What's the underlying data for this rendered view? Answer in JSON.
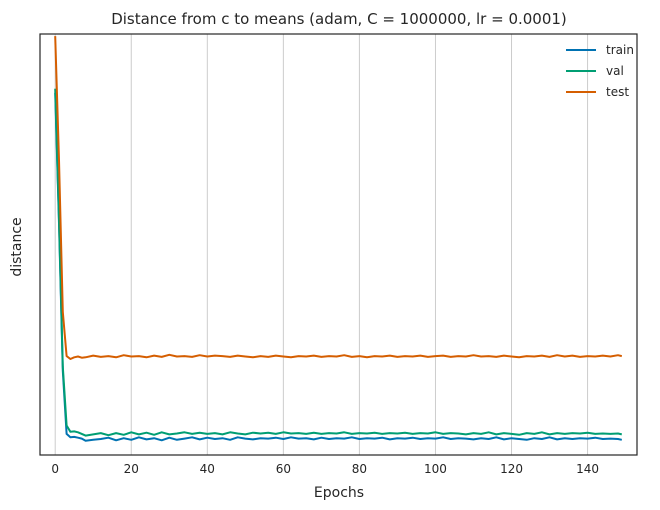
{
  "chart_data": {
    "type": "line",
    "title": "Distance from c to means (adam, C = 1000000, lr = 0.0001)",
    "xlabel": "Epochs",
    "ylabel": "distance",
    "xlim": [
      -4,
      153
    ],
    "ylim": [
      0,
      100
    ],
    "xticks": [
      0,
      20,
      40,
      60,
      80,
      100,
      120,
      140
    ],
    "grid": "vertical",
    "legend_position": "top-right",
    "series": [
      {
        "name": "train",
        "color": "#0072b2",
        "points": [
          [
            0,
            86
          ],
          [
            1,
            55
          ],
          [
            2,
            20
          ],
          [
            3,
            5
          ],
          [
            4,
            4.2
          ],
          [
            5,
            4.3
          ],
          [
            6,
            4.1
          ],
          [
            7,
            3.9
          ],
          [
            8,
            3.4
          ],
          [
            10,
            3.6
          ],
          [
            12,
            3.8
          ],
          [
            14,
            4.1
          ],
          [
            16,
            3.5
          ],
          [
            18,
            4
          ],
          [
            20,
            3.6
          ],
          [
            22,
            4.2
          ],
          [
            24,
            3.7
          ],
          [
            26,
            4
          ],
          [
            28,
            3.5
          ],
          [
            30,
            4.1
          ],
          [
            32,
            3.6
          ],
          [
            34,
            3.9
          ],
          [
            36,
            4.2
          ],
          [
            38,
            3.7
          ],
          [
            40,
            4.1
          ],
          [
            42,
            3.8
          ],
          [
            44,
            4
          ],
          [
            46,
            3.6
          ],
          [
            48,
            4.2
          ],
          [
            50,
            3.9
          ],
          [
            52,
            3.7
          ],
          [
            54,
            4
          ],
          [
            56,
            3.9
          ],
          [
            58,
            4.1
          ],
          [
            60,
            3.8
          ],
          [
            62,
            4.2
          ],
          [
            64,
            3.9
          ],
          [
            66,
            4
          ],
          [
            68,
            3.7
          ],
          [
            70,
            4.1
          ],
          [
            72,
            3.8
          ],
          [
            74,
            4
          ],
          [
            76,
            3.9
          ],
          [
            78,
            4.2
          ],
          [
            80,
            3.8
          ],
          [
            82,
            4
          ],
          [
            84,
            3.9
          ],
          [
            86,
            4.1
          ],
          [
            88,
            3.7
          ],
          [
            90,
            4
          ],
          [
            92,
            3.9
          ],
          [
            94,
            4.1
          ],
          [
            96,
            3.8
          ],
          [
            98,
            4
          ],
          [
            100,
            3.9
          ],
          [
            102,
            4.2
          ],
          [
            104,
            3.8
          ],
          [
            106,
            4
          ],
          [
            108,
            3.9
          ],
          [
            110,
            3.7
          ],
          [
            112,
            4
          ],
          [
            114,
            3.8
          ],
          [
            116,
            4.2
          ],
          [
            118,
            3.7
          ],
          [
            120,
            4
          ],
          [
            122,
            3.8
          ],
          [
            124,
            3.6
          ],
          [
            126,
            4
          ],
          [
            128,
            3.8
          ],
          [
            130,
            4.2
          ],
          [
            132,
            3.7
          ],
          [
            134,
            4
          ],
          [
            136,
            3.8
          ],
          [
            138,
            4
          ],
          [
            140,
            3.9
          ],
          [
            142,
            4.1
          ],
          [
            144,
            3.8
          ],
          [
            146,
            3.9
          ],
          [
            148,
            3.8
          ],
          [
            149,
            3.6
          ]
        ]
      },
      {
        "name": "val",
        "color": "#009e73",
        "points": [
          [
            0,
            87
          ],
          [
            1,
            56
          ],
          [
            2,
            21
          ],
          [
            3,
            7
          ],
          [
            4,
            5.5
          ],
          [
            5,
            5.6
          ],
          [
            6,
            5.4
          ],
          [
            7,
            5
          ],
          [
            8,
            4.6
          ],
          [
            10,
            4.9
          ],
          [
            12,
            5.2
          ],
          [
            14,
            4.7
          ],
          [
            16,
            5.2
          ],
          [
            18,
            4.8
          ],
          [
            20,
            5.4
          ],
          [
            22,
            4.9
          ],
          [
            24,
            5.3
          ],
          [
            26,
            4.8
          ],
          [
            28,
            5.4
          ],
          [
            30,
            4.9
          ],
          [
            32,
            5.1
          ],
          [
            34,
            5.4
          ],
          [
            36,
            5
          ],
          [
            38,
            5.3
          ],
          [
            40,
            5
          ],
          [
            42,
            5.2
          ],
          [
            44,
            4.9
          ],
          [
            46,
            5.4
          ],
          [
            48,
            5.1
          ],
          [
            50,
            4.9
          ],
          [
            52,
            5.3
          ],
          [
            54,
            5.1
          ],
          [
            56,
            5.3
          ],
          [
            58,
            5
          ],
          [
            60,
            5.4
          ],
          [
            62,
            5.1
          ],
          [
            64,
            5.2
          ],
          [
            66,
            5
          ],
          [
            68,
            5.3
          ],
          [
            70,
            5
          ],
          [
            72,
            5.2
          ],
          [
            74,
            5.1
          ],
          [
            76,
            5.4
          ],
          [
            78,
            5
          ],
          [
            80,
            5.2
          ],
          [
            82,
            5.1
          ],
          [
            84,
            5.3
          ],
          [
            86,
            5
          ],
          [
            88,
            5.2
          ],
          [
            90,
            5.1
          ],
          [
            92,
            5.3
          ],
          [
            94,
            5
          ],
          [
            96,
            5.2
          ],
          [
            98,
            5.1
          ],
          [
            100,
            5.4
          ],
          [
            102,
            5
          ],
          [
            104,
            5.2
          ],
          [
            106,
            5.1
          ],
          [
            108,
            4.9
          ],
          [
            110,
            5.2
          ],
          [
            112,
            5
          ],
          [
            114,
            5.4
          ],
          [
            116,
            4.9
          ],
          [
            118,
            5.2
          ],
          [
            120,
            5
          ],
          [
            122,
            4.8
          ],
          [
            124,
            5.2
          ],
          [
            126,
            5
          ],
          [
            128,
            5.4
          ],
          [
            130,
            4.9
          ],
          [
            132,
            5.2
          ],
          [
            134,
            5
          ],
          [
            136,
            5.2
          ],
          [
            138,
            5.1
          ],
          [
            140,
            5.3
          ],
          [
            142,
            5
          ],
          [
            144,
            5.1
          ],
          [
            146,
            5
          ],
          [
            148,
            5.1
          ],
          [
            149,
            4.9
          ]
        ]
      },
      {
        "name": "test",
        "color": "#d55e00",
        "points": [
          [
            0,
            99.5
          ],
          [
            1,
            70
          ],
          [
            2,
            34
          ],
          [
            3,
            23.5
          ],
          [
            4,
            22.8
          ],
          [
            5,
            23.2
          ],
          [
            6,
            23.4
          ],
          [
            7,
            23.1
          ],
          [
            8,
            23.2
          ],
          [
            10,
            23.6
          ],
          [
            12,
            23.3
          ],
          [
            14,
            23.5
          ],
          [
            16,
            23.2
          ],
          [
            18,
            23.7
          ],
          [
            20,
            23.4
          ],
          [
            22,
            23.5
          ],
          [
            24,
            23.2
          ],
          [
            26,
            23.6
          ],
          [
            28,
            23.3
          ],
          [
            30,
            23.8
          ],
          [
            32,
            23.4
          ],
          [
            34,
            23.5
          ],
          [
            36,
            23.3
          ],
          [
            38,
            23.7
          ],
          [
            40,
            23.4
          ],
          [
            42,
            23.6
          ],
          [
            44,
            23.5
          ],
          [
            46,
            23.3
          ],
          [
            48,
            23.6
          ],
          [
            50,
            23.4
          ],
          [
            52,
            23.2
          ],
          [
            54,
            23.5
          ],
          [
            56,
            23.3
          ],
          [
            58,
            23.6
          ],
          [
            60,
            23.4
          ],
          [
            62,
            23.2
          ],
          [
            64,
            23.5
          ],
          [
            66,
            23.4
          ],
          [
            68,
            23.6
          ],
          [
            70,
            23.3
          ],
          [
            72,
            23.5
          ],
          [
            74,
            23.4
          ],
          [
            76,
            23.7
          ],
          [
            78,
            23.3
          ],
          [
            80,
            23.5
          ],
          [
            82,
            23.2
          ],
          [
            84,
            23.5
          ],
          [
            86,
            23.4
          ],
          [
            88,
            23.6
          ],
          [
            90,
            23.3
          ],
          [
            92,
            23.5
          ],
          [
            94,
            23.4
          ],
          [
            96,
            23.6
          ],
          [
            98,
            23.3
          ],
          [
            100,
            23.5
          ],
          [
            102,
            23.6
          ],
          [
            104,
            23.3
          ],
          [
            106,
            23.5
          ],
          [
            108,
            23.4
          ],
          [
            110,
            23.7
          ],
          [
            112,
            23.4
          ],
          [
            114,
            23.5
          ],
          [
            116,
            23.3
          ],
          [
            118,
            23.6
          ],
          [
            120,
            23.4
          ],
          [
            122,
            23.2
          ],
          [
            124,
            23.5
          ],
          [
            126,
            23.4
          ],
          [
            128,
            23.6
          ],
          [
            130,
            23.3
          ],
          [
            132,
            23.7
          ],
          [
            134,
            23.4
          ],
          [
            136,
            23.6
          ],
          [
            138,
            23.3
          ],
          [
            140,
            23.5
          ],
          [
            142,
            23.4
          ],
          [
            144,
            23.6
          ],
          [
            146,
            23.4
          ],
          [
            148,
            23.7
          ],
          [
            149,
            23.5
          ]
        ]
      }
    ]
  }
}
